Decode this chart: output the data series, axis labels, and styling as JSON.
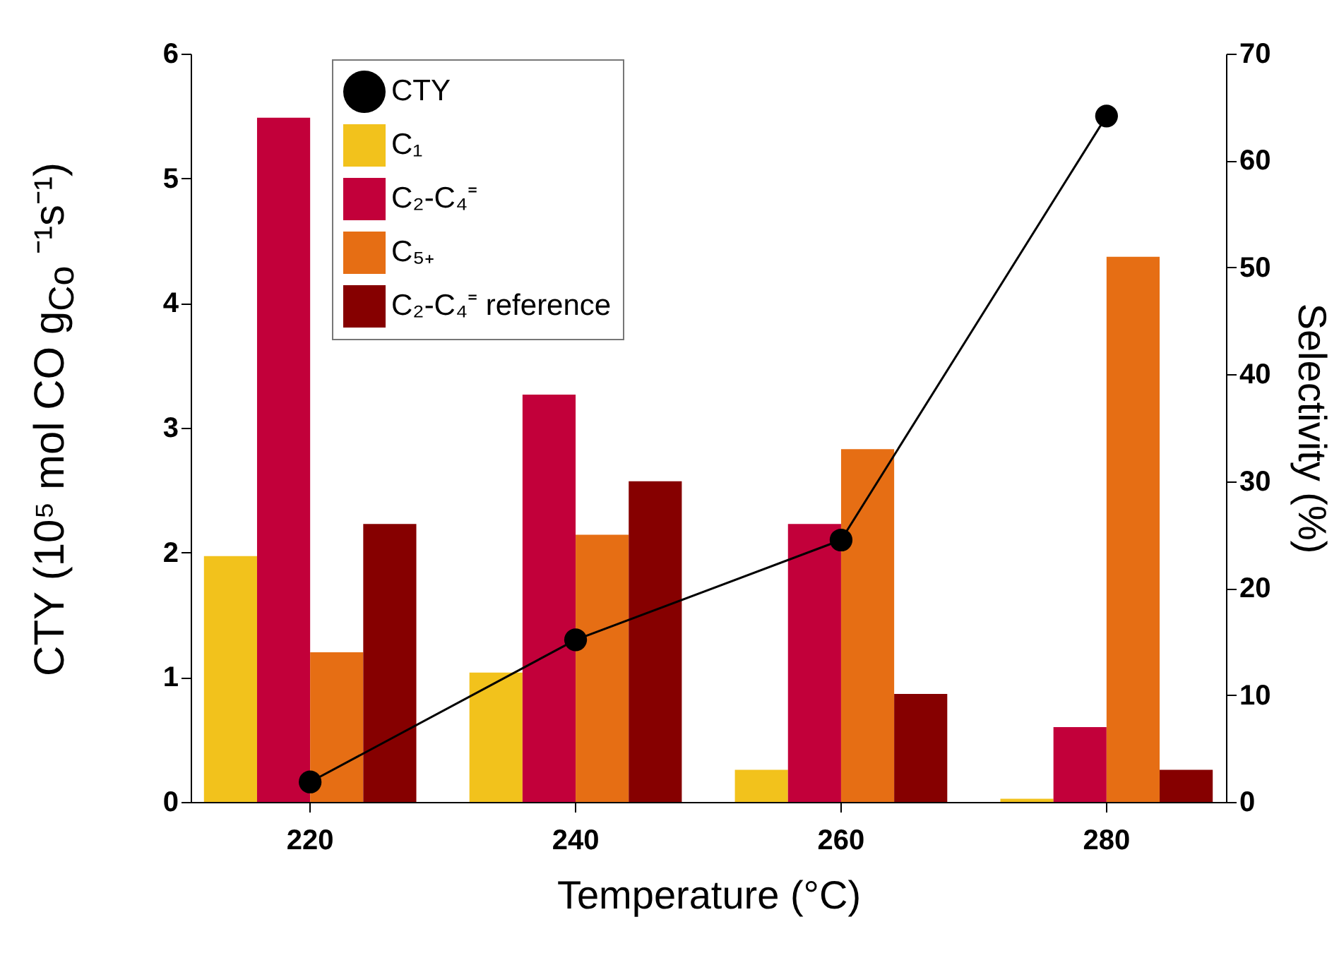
{
  "chart_data": {
    "type": "bar",
    "xlabel": "Temperature (°C)",
    "ylabel": "CTY (10⁵ mol CO g$_{Co}$ ⁻¹s⁻¹)",
    "y2label": "Selectivity (%)",
    "categories": [
      "220",
      "240",
      "260",
      "280"
    ],
    "ylim": [
      0,
      6
    ],
    "yticks": [
      0,
      1,
      2,
      3,
      4,
      5,
      6
    ],
    "y2lim": [
      0,
      70
    ],
    "y2ticks": [
      0,
      10,
      20,
      30,
      40,
      50,
      60,
      70
    ],
    "legend": "top left",
    "marker": "circle",
    "series": [
      {
        "name": "CTY",
        "type": "line",
        "color": "#000000",
        "values": [
          0.16,
          1.3,
          2.1,
          5.5
        ]
      },
      {
        "name": "C₁",
        "color": "#f2c21c",
        "axis": "y2",
        "values": [
          23,
          12.1,
          3,
          0.3
        ]
      },
      {
        "name": "C₂-C₄⁼",
        "color": "#c2003a",
        "axis": "y2",
        "values": [
          64,
          38.1,
          26,
          7
        ]
      },
      {
        "name": "C₅₊",
        "color": "#e66e14",
        "axis": "y2",
        "values": [
          14,
          25,
          33,
          51
        ]
      },
      {
        "name": "C₂-C₄⁼ reference",
        "color": "#860000",
        "axis": "y2",
        "values": [
          26,
          30,
          10.1,
          3
        ]
      }
    ]
  }
}
